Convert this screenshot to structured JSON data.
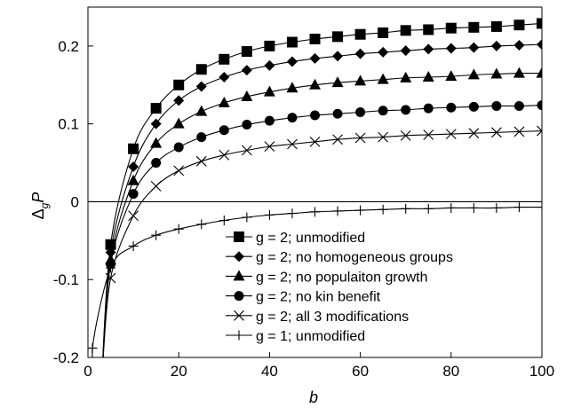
{
  "chart_data": {
    "type": "line",
    "title": "",
    "xlabel": "b",
    "ylabel": {
      "main": "Δ",
      "subscript": "g",
      "symbol": "P"
    },
    "xlim": [
      0,
      100
    ],
    "ylim": [
      -0.2,
      0.25
    ],
    "xticks": [
      0,
      20,
      40,
      60,
      80,
      100
    ],
    "xtick_labels": [
      "0",
      "20",
      "40",
      "60",
      "80",
      "100"
    ],
    "yticks": [
      -0.2,
      -0.1,
      0,
      0.1,
      0.2
    ],
    "ytick_labels": [
      "-0.2",
      "-0.1",
      "0",
      "0.1",
      "0.2"
    ],
    "grid": false,
    "zero_line": true,
    "legend_position": "bottom-right",
    "series": [
      {
        "name": "g = 2; unmodified",
        "marker": "square",
        "x": [
          5,
          10,
          15,
          20,
          25,
          30,
          35,
          40,
          45,
          50,
          55,
          60,
          65,
          70,
          75,
          80,
          85,
          90,
          95,
          100
        ],
        "y": [
          -0.055,
          0.068,
          0.12,
          0.15,
          0.17,
          0.183,
          0.193,
          0.2,
          0.205,
          0.209,
          0.212,
          0.215,
          0.217,
          0.22,
          0.221,
          0.223,
          0.224,
          0.225,
          0.227,
          0.229
        ]
      },
      {
        "name": "g = 2; no homogeneous groups",
        "marker": "diamond",
        "x": [
          5,
          10,
          15,
          20,
          25,
          30,
          35,
          40,
          45,
          50,
          55,
          60,
          65,
          70,
          75,
          80,
          85,
          90,
          95,
          100
        ],
        "y": [
          -0.065,
          0.045,
          0.1,
          0.13,
          0.148,
          0.16,
          0.169,
          0.175,
          0.18,
          0.184,
          0.187,
          0.19,
          0.192,
          0.194,
          0.196,
          0.197,
          0.198,
          0.2,
          0.201,
          0.202
        ]
      },
      {
        "name": "g = 2; no populaiton growth",
        "marker": "triangle",
        "x": [
          5,
          10,
          15,
          20,
          25,
          30,
          35,
          40,
          45,
          50,
          55,
          60,
          65,
          70,
          75,
          80,
          85,
          90,
          95,
          100
        ],
        "y": [
          -0.075,
          0.027,
          0.075,
          0.1,
          0.116,
          0.127,
          0.135,
          0.141,
          0.146,
          0.15,
          0.153,
          0.155,
          0.157,
          0.159,
          0.16,
          0.161,
          0.163,
          0.164,
          0.165,
          0.165
        ]
      },
      {
        "name": "g = 2; no kin benefit",
        "marker": "circle",
        "x": [
          5,
          10,
          15,
          20,
          25,
          30,
          35,
          40,
          45,
          50,
          55,
          60,
          65,
          70,
          75,
          80,
          85,
          90,
          95,
          100
        ],
        "y": [
          -0.08,
          0.01,
          0.05,
          0.07,
          0.083,
          0.092,
          0.099,
          0.104,
          0.108,
          0.111,
          0.113,
          0.115,
          0.117,
          0.118,
          0.12,
          0.121,
          0.122,
          0.123,
          0.123,
          0.124
        ]
      },
      {
        "name": "g = 2; all 3 modifications",
        "marker": "x",
        "x": [
          5,
          10,
          15,
          20,
          25,
          30,
          35,
          40,
          45,
          50,
          55,
          60,
          65,
          70,
          75,
          80,
          85,
          90,
          95,
          100
        ],
        "y": [
          -0.098,
          -0.018,
          0.02,
          0.04,
          0.052,
          0.06,
          0.066,
          0.071,
          0.074,
          0.077,
          0.08,
          0.082,
          0.083,
          0.085,
          0.086,
          0.087,
          0.088,
          0.089,
          0.09,
          0.091
        ]
      },
      {
        "name": "g = 1; unmodified",
        "marker": "plus",
        "x": [
          1,
          5,
          10,
          15,
          20,
          25,
          30,
          35,
          40,
          45,
          50,
          55,
          60,
          65,
          70,
          75,
          80,
          85,
          90,
          95,
          100
        ],
        "y": [
          -0.188,
          -0.085,
          -0.057,
          -0.043,
          -0.035,
          -0.029,
          -0.024,
          -0.02,
          -0.017,
          -0.015,
          -0.013,
          -0.012,
          -0.011,
          -0.01,
          -0.009,
          -0.009,
          -0.008,
          -0.008,
          -0.008,
          -0.007,
          -0.007
        ]
      }
    ]
  }
}
